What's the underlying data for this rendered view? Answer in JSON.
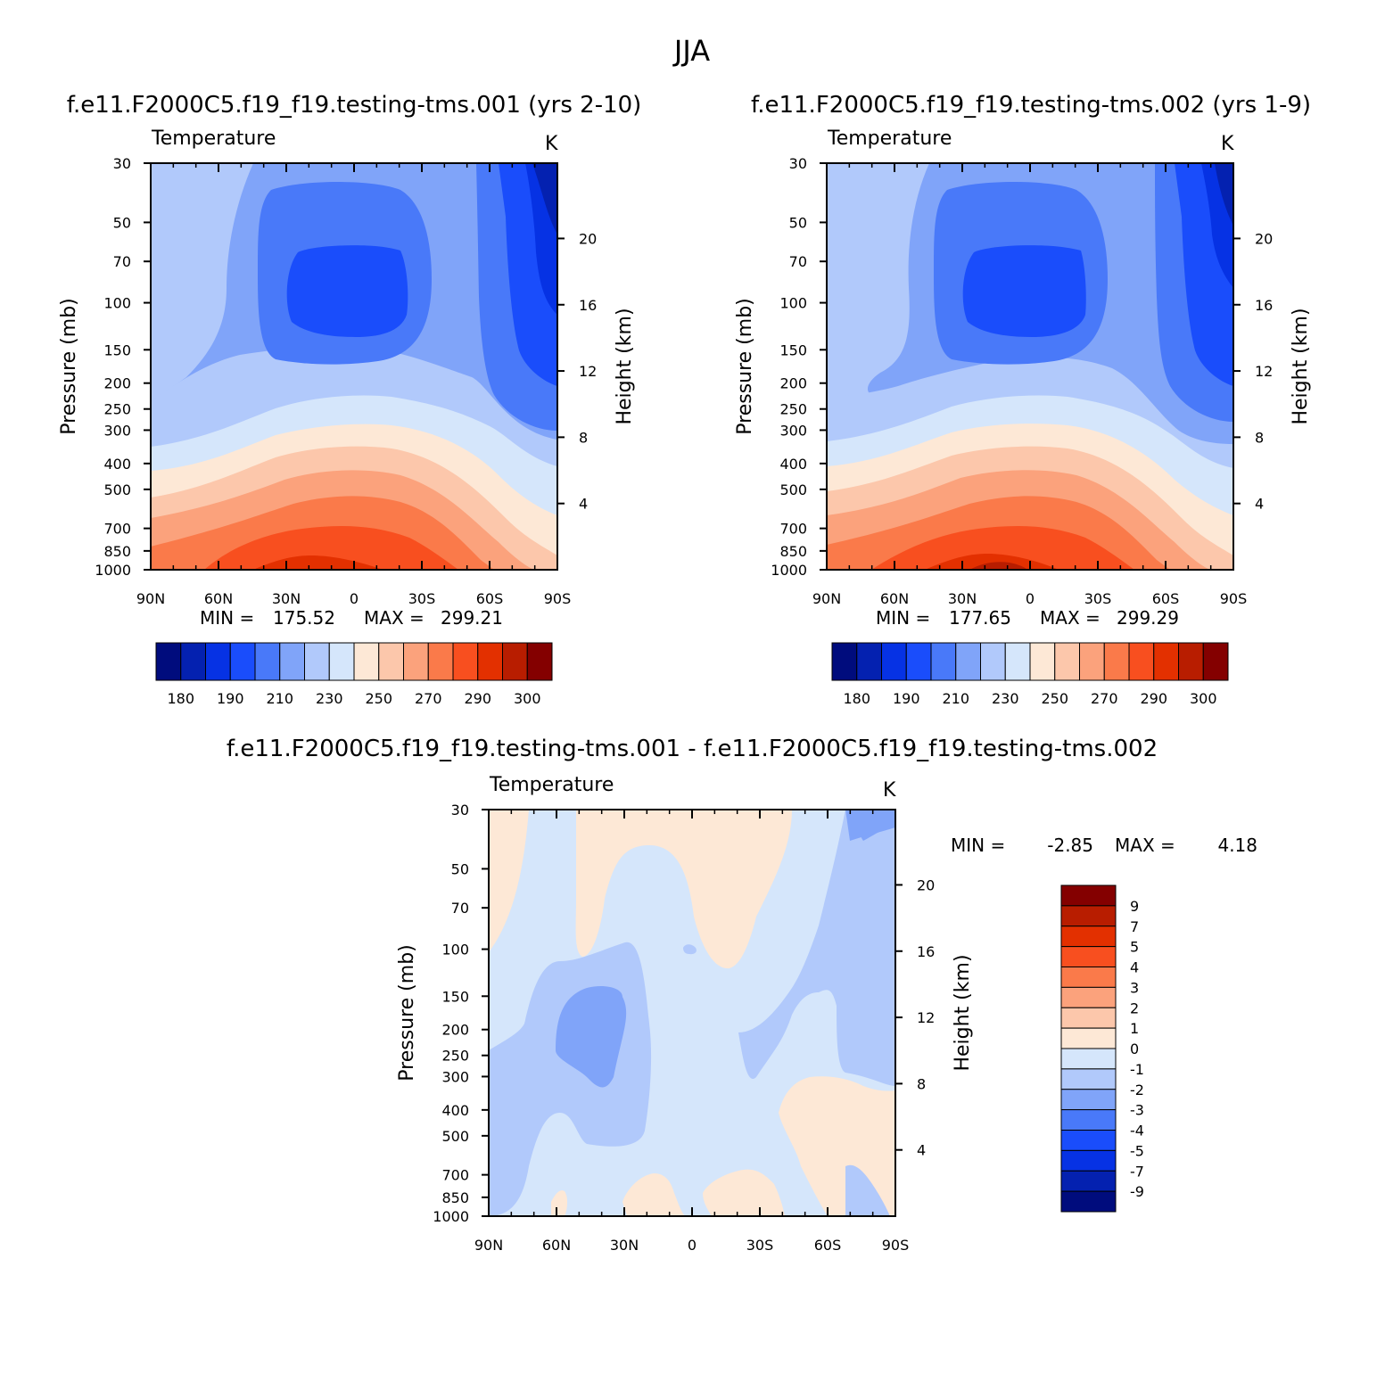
{
  "main_title": "JJA",
  "chart_data": [
    {
      "type": "heatmap",
      "title": "f.e11.F2000C5.f19_f19.testing-tms.001 (yrs 2-10)",
      "variable": "Temperature",
      "units": "K",
      "ylabel": "Pressure (mb)",
      "ylabel_right": "Height (km)",
      "x_ticks": [
        "90N",
        "60N",
        "30N",
        "0",
        "30S",
        "60S",
        "90S"
      ],
      "y_ticks": [
        30,
        50,
        70,
        100,
        150,
        200,
        250,
        300,
        400,
        500,
        700,
        850,
        1000
      ],
      "y_ticks_right": [
        4,
        8,
        12,
        16,
        20
      ],
      "min_label": "MIN =",
      "min_value": "175.52",
      "max_label": "MAX =",
      "max_value": "299.21",
      "colorbar_labels": [
        "180",
        "190",
        "210",
        "230",
        "250",
        "270",
        "290",
        "300"
      ]
    },
    {
      "type": "heatmap",
      "title": "f.e11.F2000C5.f19_f19.testing-tms.002 (yrs 1-9)",
      "variable": "Temperature",
      "units": "K",
      "ylabel": "Pressure (mb)",
      "ylabel_right": "Height (km)",
      "x_ticks": [
        "90N",
        "60N",
        "30N",
        "0",
        "30S",
        "60S",
        "90S"
      ],
      "y_ticks": [
        30,
        50,
        70,
        100,
        150,
        200,
        250,
        300,
        400,
        500,
        700,
        850,
        1000
      ],
      "y_ticks_right": [
        4,
        8,
        12,
        16,
        20
      ],
      "min_label": "MIN =",
      "min_value": "177.65",
      "max_label": "MAX =",
      "max_value": "299.29",
      "colorbar_labels": [
        "180",
        "190",
        "210",
        "230",
        "250",
        "270",
        "290",
        "300"
      ]
    },
    {
      "type": "heatmap",
      "title": "f.e11.F2000C5.f19_f19.testing-tms.001 - f.e11.F2000C5.f19_f19.testing-tms.002",
      "variable": "Temperature",
      "units": "K",
      "ylabel": "Pressure (mb)",
      "ylabel_right": "Height (km)",
      "x_ticks": [
        "90N",
        "60N",
        "30N",
        "0",
        "30S",
        "60S",
        "90S"
      ],
      "y_ticks": [
        30,
        50,
        70,
        100,
        150,
        200,
        250,
        300,
        400,
        500,
        700,
        850,
        1000
      ],
      "y_ticks_right": [
        4,
        8,
        12,
        16,
        20
      ],
      "min_label": "MIN =",
      "min_value": "-2.85",
      "max_label": "MAX =",
      "max_value": "4.18",
      "colorbar_labels": [
        "9",
        "7",
        "5",
        "4",
        "3",
        "2",
        "1",
        "0",
        "-1",
        "-2",
        "-3",
        "-4",
        "-5",
        "-7",
        "-9"
      ]
    }
  ],
  "colors": {
    "abs_scale": [
      "#000c7d",
      "#0421b0",
      "#0632e4",
      "#1a4dfb",
      "#4979f9",
      "#80a4f9",
      "#b1c9fb",
      "#d5e6fb",
      "#fde8d6",
      "#fcc7ab",
      "#fba27c",
      "#fa7a4a",
      "#f84f1f",
      "#e33000",
      "#b81d00",
      "#840000"
    ],
    "diff_scale": [
      "#840000",
      "#b81d00",
      "#e33000",
      "#f84f1f",
      "#fa7a4a",
      "#fba27c",
      "#fcc7ab",
      "#fde8d6",
      "#d5e6fb",
      "#b1c9fb",
      "#80a4f9",
      "#4979f9",
      "#1a4dfb",
      "#0632e4",
      "#0421b0",
      "#000c7d"
    ]
  }
}
